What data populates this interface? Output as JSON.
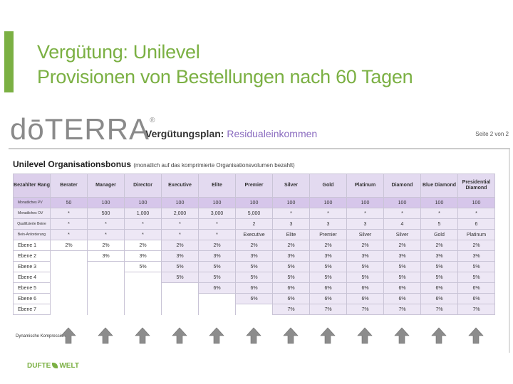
{
  "slide": {
    "title_line1": "Vergütung: Unilevel",
    "title_line2": "Provisionen von Bestellungen nach 60 Tagen",
    "accent": "#7bb043"
  },
  "doc": {
    "logo": "dōTERRA",
    "logo_mark": "®",
    "plan_title_bold": "Vergütungsplan:",
    "plan_title_rest": "Residualeinkommen",
    "page_no": "Seite 2 von 2",
    "bonus_title": "Unilevel Organisationsbonus",
    "bonus_note": "(monatlich auf das komprimierte Organisationsvolumen bezahlt)",
    "header_label": "Bezahlter Rang",
    "ranks": [
      "Berater",
      "Manager",
      "Director",
      "Executive",
      "Elite",
      "Premier",
      "Silver",
      "Gold",
      "Platinum",
      "Diamond",
      "Blue Diamond",
      "Presidential Diamond"
    ],
    "rows": [
      {
        "label": "Monatliches PV",
        "values": [
          "50",
          "100",
          "100",
          "100",
          "100",
          "100",
          "100",
          "100",
          "100",
          "100",
          "100",
          "100"
        ]
      },
      {
        "label": "Monatliches OV",
        "values": [
          "*",
          "500",
          "1,000",
          "2,000",
          "3,000",
          "5,000",
          "*",
          "*",
          "*",
          "*",
          "*",
          "*"
        ]
      },
      {
        "label": "Qualifizierte Beine",
        "values": [
          "*",
          "*",
          "*",
          "*",
          "*",
          "2",
          "3",
          "3",
          "3",
          "4",
          "5",
          "6"
        ]
      },
      {
        "label": "Bein-Anforderung",
        "values": [
          "*",
          "*",
          "*",
          "*",
          "*",
          "Executive",
          "Elite",
          "Premier",
          "Silver",
          "Silver",
          "Gold",
          "Platinum"
        ]
      }
    ],
    "levels": [
      {
        "label": "Ebene 1",
        "values": [
          "2%",
          "2%",
          "2%",
          "2%",
          "2%",
          "2%",
          "2%",
          "2%",
          "2%",
          "2%",
          "2%",
          "2%"
        ]
      },
      {
        "label": "Ebene 2",
        "values": [
          "",
          "3%",
          "3%",
          "3%",
          "3%",
          "3%",
          "3%",
          "3%",
          "3%",
          "3%",
          "3%",
          "3%"
        ]
      },
      {
        "label": "Ebene 3",
        "values": [
          "",
          "",
          "5%",
          "5%",
          "5%",
          "5%",
          "5%",
          "5%",
          "5%",
          "5%",
          "5%",
          "5%"
        ]
      },
      {
        "label": "Ebene 4",
        "values": [
          "",
          "",
          "",
          "5%",
          "5%",
          "5%",
          "5%",
          "5%",
          "5%",
          "5%",
          "5%",
          "5%"
        ]
      },
      {
        "label": "Ebene 5",
        "values": [
          "",
          "",
          "",
          "",
          "6%",
          "6%",
          "6%",
          "6%",
          "6%",
          "6%",
          "6%",
          "6%"
        ]
      },
      {
        "label": "Ebene 6",
        "values": [
          "",
          "",
          "",
          "",
          "",
          "6%",
          "6%",
          "6%",
          "6%",
          "6%",
          "6%",
          "6%"
        ]
      },
      {
        "label": "Ebene 7",
        "values": [
          "",
          "",
          "",
          "",
          "",
          "",
          "7%",
          "7%",
          "7%",
          "7%",
          "7%",
          "7%"
        ]
      }
    ],
    "compression_label": "Dynamische Kompression"
  },
  "footer": {
    "brand_left": "DUFTE",
    "brand_right": "WELT"
  }
}
